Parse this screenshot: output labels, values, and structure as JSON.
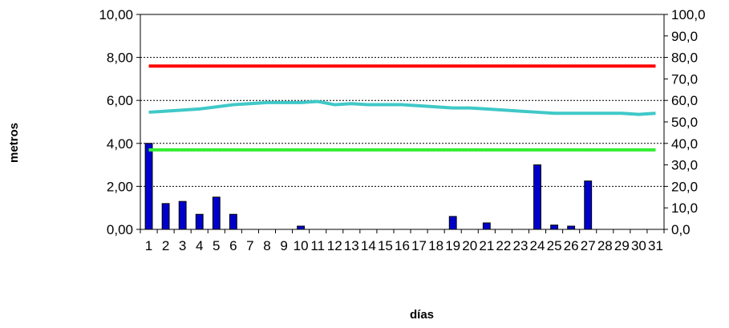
{
  "chart_data": {
    "type": "bar",
    "xlabel": "días",
    "ylabel": "metros",
    "x": [
      1,
      2,
      3,
      4,
      5,
      6,
      7,
      8,
      9,
      10,
      11,
      12,
      13,
      14,
      15,
      16,
      17,
      18,
      19,
      20,
      21,
      22,
      23,
      24,
      25,
      26,
      27,
      28,
      29,
      30,
      31
    ],
    "x_tick_labels": [
      "1",
      "2",
      "3",
      "4",
      "5",
      "6",
      "7",
      "8",
      "9",
      "10",
      "11",
      "12",
      "13",
      "14",
      "15",
      "16",
      "17",
      "18",
      "19",
      "20",
      "21",
      "22",
      "23",
      "24",
      "25",
      "26",
      "27",
      "28",
      "29",
      "30",
      "31"
    ],
    "ylim_left": [
      0,
      10
    ],
    "yticks_left": [
      0,
      2,
      4,
      6,
      8,
      10
    ],
    "ytick_labels_left": [
      "0,00",
      "2,00",
      "4,00",
      "6,00",
      "8,00",
      "10,00"
    ],
    "ylim_right": [
      0,
      100
    ],
    "yticks_right": [
      0,
      10,
      20,
      30,
      40,
      50,
      60,
      70,
      80,
      90,
      100
    ],
    "ytick_labels_right": [
      "0,0",
      "10,0",
      "20,0",
      "30,0",
      "40,0",
      "50,0",
      "60,0",
      "70,0",
      "80,0",
      "90,0",
      "100,0"
    ],
    "grid": true,
    "series": [
      {
        "kind": "bar",
        "axis": "right",
        "color": "#0000cc",
        "values": [
          40,
          12,
          13,
          7,
          15,
          7,
          0,
          0,
          0,
          1.5,
          0,
          0,
          0,
          0,
          0,
          0,
          0,
          0,
          6,
          0,
          3,
          0,
          0,
          30,
          2,
          1.5,
          22.5,
          0,
          0,
          0,
          0
        ]
      },
      {
        "kind": "line",
        "axis": "left",
        "color": "#ff0000",
        "values": [
          7.6,
          7.6,
          7.6,
          7.6,
          7.6,
          7.6,
          7.6,
          7.6,
          7.6,
          7.6,
          7.6,
          7.6,
          7.6,
          7.6,
          7.6,
          7.6,
          7.6,
          7.6,
          7.6,
          7.6,
          7.6,
          7.6,
          7.6,
          7.6,
          7.6,
          7.6,
          7.6,
          7.6,
          7.6,
          7.6,
          7.6
        ]
      },
      {
        "kind": "line",
        "axis": "left",
        "color": "#40c8c8",
        "values": [
          5.45,
          5.5,
          5.55,
          5.6,
          5.7,
          5.8,
          5.85,
          5.9,
          5.9,
          5.9,
          5.95,
          5.8,
          5.85,
          5.8,
          5.8,
          5.8,
          5.75,
          5.7,
          5.65,
          5.65,
          5.6,
          5.55,
          5.5,
          5.45,
          5.4,
          5.4,
          5.4,
          5.4,
          5.4,
          5.35,
          5.4
        ]
      },
      {
        "kind": "line",
        "axis": "left",
        "color": "#33ee33",
        "values": [
          3.7,
          3.7,
          3.7,
          3.7,
          3.7,
          3.7,
          3.7,
          3.7,
          3.7,
          3.7,
          3.7,
          3.7,
          3.7,
          3.7,
          3.7,
          3.7,
          3.7,
          3.7,
          3.7,
          3.7,
          3.7,
          3.7,
          3.7,
          3.7,
          3.7,
          3.7,
          3.7,
          3.7,
          3.7,
          3.7,
          3.7
        ]
      }
    ]
  }
}
